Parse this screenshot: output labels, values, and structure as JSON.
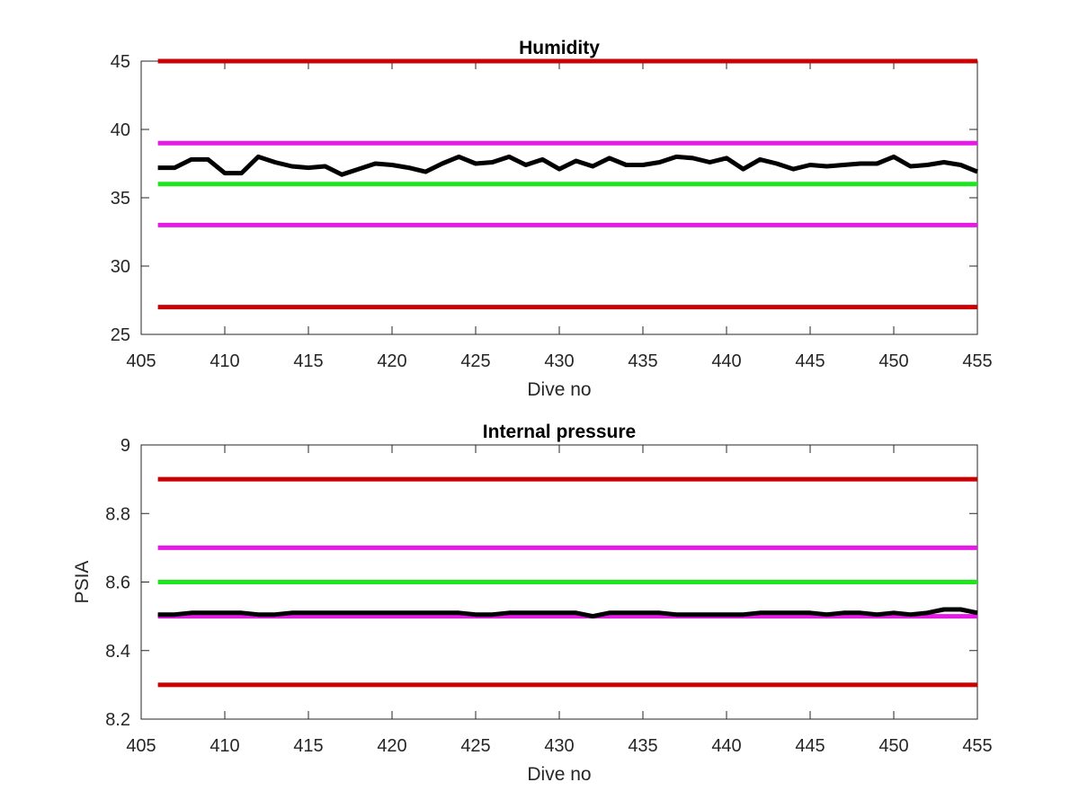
{
  "chart_data": [
    {
      "type": "line",
      "title": "Humidity",
      "xlabel": "Dive no",
      "ylabel": "",
      "xlim": [
        405,
        455
      ],
      "ylim": [
        25,
        45
      ],
      "xticks": [
        "405",
        "410",
        "415",
        "420",
        "425",
        "430",
        "435",
        "440",
        "445",
        "450",
        "455"
      ],
      "yticks": [
        "25",
        "30",
        "35",
        "40",
        "45"
      ],
      "grid": false,
      "reference_lines": [
        {
          "y": 45,
          "color": "#cc0000"
        },
        {
          "y": 39,
          "color": "#e619e6"
        },
        {
          "y": 36,
          "color": "#1ee61e"
        },
        {
          "y": 33,
          "color": "#e619e6"
        },
        {
          "y": 27,
          "color": "#cc0000"
        }
      ],
      "series": [
        {
          "color": "#000000",
          "x": [
            406,
            407,
            408,
            409,
            410,
            411,
            412,
            413,
            414,
            415,
            416,
            417,
            418,
            419,
            420,
            421,
            422,
            423,
            424,
            425,
            426,
            427,
            428,
            429,
            430,
            431,
            432,
            433,
            434,
            435,
            436,
            437,
            438,
            439,
            440,
            441,
            442,
            443,
            444,
            445,
            446,
            447,
            448,
            449,
            450,
            451,
            452,
            453,
            454,
            455
          ],
          "y": [
            37.2,
            37.2,
            37.8,
            37.8,
            36.8,
            36.8,
            38.0,
            37.6,
            37.3,
            37.2,
            37.3,
            36.7,
            37.1,
            37.5,
            37.4,
            37.2,
            36.9,
            37.5,
            38.0,
            37.5,
            37.6,
            38.0,
            37.4,
            37.8,
            37.1,
            37.7,
            37.3,
            37.9,
            37.4,
            37.4,
            37.6,
            38.0,
            37.9,
            37.6,
            37.9,
            37.1,
            37.8,
            37.5,
            37.1,
            37.4,
            37.3,
            37.4,
            37.5,
            37.5,
            38.0,
            37.3,
            37.4,
            37.6,
            37.4,
            36.9
          ]
        }
      ]
    },
    {
      "type": "line",
      "title": "Internal pressure",
      "xlabel": "Dive no",
      "ylabel": "PSIA",
      "xlim": [
        405,
        455
      ],
      "ylim": [
        8.2,
        9.0
      ],
      "xticks": [
        "405",
        "410",
        "415",
        "420",
        "425",
        "430",
        "435",
        "440",
        "445",
        "450",
        "455"
      ],
      "yticks": [
        "8.2",
        "8.4",
        "8.6",
        "8.8",
        "9"
      ],
      "grid": false,
      "reference_lines": [
        {
          "y": 8.9,
          "color": "#cc0000"
        },
        {
          "y": 8.7,
          "color": "#e619e6"
        },
        {
          "y": 8.6,
          "color": "#1ee61e"
        },
        {
          "y": 8.5,
          "color": "#e619e6"
        },
        {
          "y": 8.3,
          "color": "#cc0000"
        }
      ],
      "series": [
        {
          "color": "#000000",
          "x": [
            406,
            407,
            408,
            409,
            410,
            411,
            412,
            413,
            414,
            415,
            416,
            417,
            418,
            419,
            420,
            421,
            422,
            423,
            424,
            425,
            426,
            427,
            428,
            429,
            430,
            431,
            432,
            433,
            434,
            435,
            436,
            437,
            438,
            439,
            440,
            441,
            442,
            443,
            444,
            445,
            446,
            447,
            448,
            449,
            450,
            451,
            452,
            453,
            454,
            455
          ],
          "y": [
            8.505,
            8.505,
            8.51,
            8.51,
            8.51,
            8.51,
            8.505,
            8.505,
            8.51,
            8.51,
            8.51,
            8.51,
            8.51,
            8.51,
            8.51,
            8.51,
            8.51,
            8.51,
            8.51,
            8.505,
            8.505,
            8.51,
            8.51,
            8.51,
            8.51,
            8.51,
            8.5,
            8.51,
            8.51,
            8.51,
            8.51,
            8.505,
            8.505,
            8.505,
            8.505,
            8.505,
            8.51,
            8.51,
            8.51,
            8.51,
            8.505,
            8.51,
            8.51,
            8.505,
            8.51,
            8.505,
            8.51,
            8.52,
            8.52,
            8.51
          ]
        }
      ]
    }
  ]
}
